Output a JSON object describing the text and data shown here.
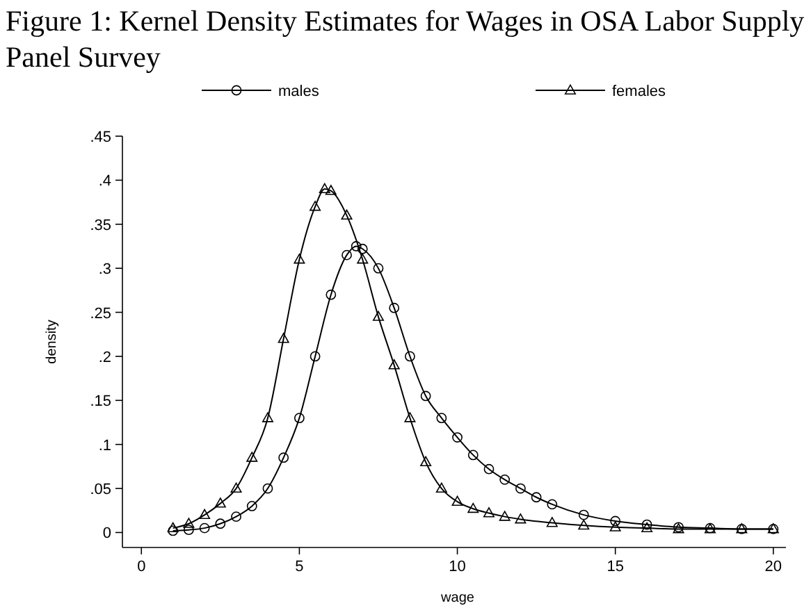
{
  "chart_data": {
    "type": "line",
    "title": "Figure 1: Kernel Density Estimates for Wages in OSA Labor Supply Panel Survey",
    "xlabel": "wage",
    "ylabel": "density",
    "xlim": [
      -0.6,
      20.4
    ],
    "ylim": [
      -0.017,
      0.45
    ],
    "xticks": [
      0,
      5,
      10,
      15,
      20
    ],
    "yticks": [
      0,
      {
        "value": 0.05,
        "label": ".05"
      },
      {
        "value": 0.1,
        "label": ".1"
      },
      {
        "value": 0.15,
        "label": ".15"
      },
      {
        "value": 0.2,
        "label": ".2"
      },
      {
        "value": 0.25,
        "label": ".25"
      },
      {
        "value": 0.3,
        "label": ".3"
      },
      {
        "value": 0.35,
        "label": ".35"
      },
      {
        "value": 0.4,
        "label": ".4"
      },
      {
        "value": 0.45,
        "label": ".45"
      }
    ],
    "grid": false,
    "legend": "top",
    "line_style": "solid",
    "series": [
      {
        "name": "males",
        "color": "#000000",
        "marker": "circle",
        "x": [
          1,
          1.5,
          2,
          2.5,
          3,
          3.5,
          4,
          4.5,
          5,
          5.5,
          6,
          6.5,
          6.8,
          7,
          7.5,
          8,
          8.5,
          9,
          9.5,
          10,
          10.5,
          11,
          11.5,
          12,
          12.5,
          13,
          14,
          15,
          16,
          17,
          18,
          19,
          20
        ],
        "values": [
          0.002,
          0.003,
          0.005,
          0.01,
          0.018,
          0.03,
          0.05,
          0.085,
          0.13,
          0.2,
          0.27,
          0.315,
          0.325,
          0.322,
          0.3,
          0.255,
          0.2,
          0.155,
          0.13,
          0.108,
          0.088,
          0.072,
          0.06,
          0.05,
          0.04,
          0.032,
          0.02,
          0.013,
          0.009,
          0.006,
          0.005,
          0.004,
          0.004
        ]
      },
      {
        "name": "females",
        "color": "#000000",
        "marker": "triangle",
        "x": [
          1,
          1.5,
          2,
          2.5,
          3,
          3.5,
          4,
          4.5,
          5,
          5.5,
          5.8,
          6,
          6.5,
          7,
          7.5,
          8,
          8.5,
          9,
          9.5,
          10,
          10.5,
          11,
          11.5,
          12,
          13,
          14,
          15,
          16,
          17,
          18,
          19,
          20
        ],
        "values": [
          0.005,
          0.01,
          0.02,
          0.033,
          0.05,
          0.085,
          0.13,
          0.22,
          0.31,
          0.37,
          0.39,
          0.388,
          0.36,
          0.31,
          0.245,
          0.19,
          0.13,
          0.08,
          0.05,
          0.035,
          0.027,
          0.022,
          0.018,
          0.015,
          0.011,
          0.008,
          0.006,
          0.005,
          0.004,
          0.004,
          0.004,
          0.004
        ]
      }
    ]
  }
}
